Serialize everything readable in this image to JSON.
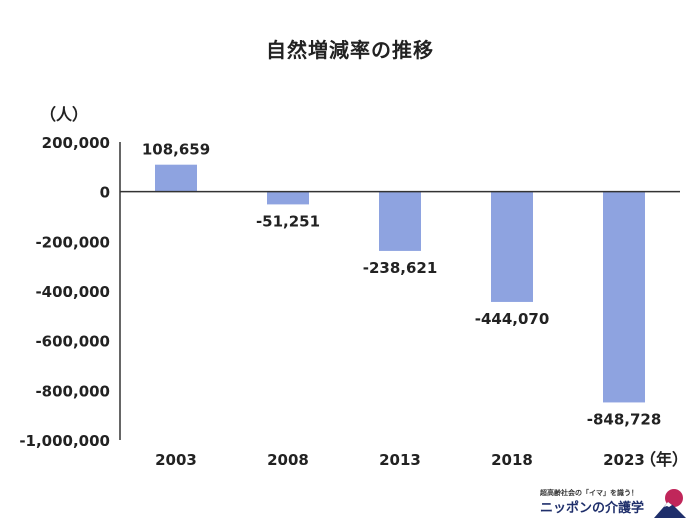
{
  "chart_data": {
    "type": "bar",
    "title": "自然増減率の推移",
    "ylabel": "（人）",
    "xlabel": "（年）",
    "categories": [
      "2003",
      "2008",
      "2013",
      "2018",
      "2023"
    ],
    "values": [
      108659,
      -51251,
      -238621,
      -444070,
      -848728
    ],
    "data_labels": [
      "108,659",
      "-51,251",
      "-238,621",
      "-444,070",
      "-848,728"
    ],
    "y_ticks": [
      200000,
      0,
      -200000,
      -400000,
      -600000,
      -800000,
      -1000000
    ],
    "y_tick_labels": [
      "200,000",
      "0",
      "-200,000",
      "-400,000",
      "-600,000",
      "-800,000",
      "-1,000,000"
    ],
    "ylim": [
      -1000000,
      200000
    ],
    "bar_color": "#8ea3e0",
    "grid": false
  },
  "logo": {
    "tagline": "超高齢社会の「イマ」を識う！",
    "name": "ニッポンの介護学",
    "colors": {
      "text": "#1f2f6b",
      "sun": "#c0265a",
      "mountain": "#1f2f6b"
    }
  }
}
